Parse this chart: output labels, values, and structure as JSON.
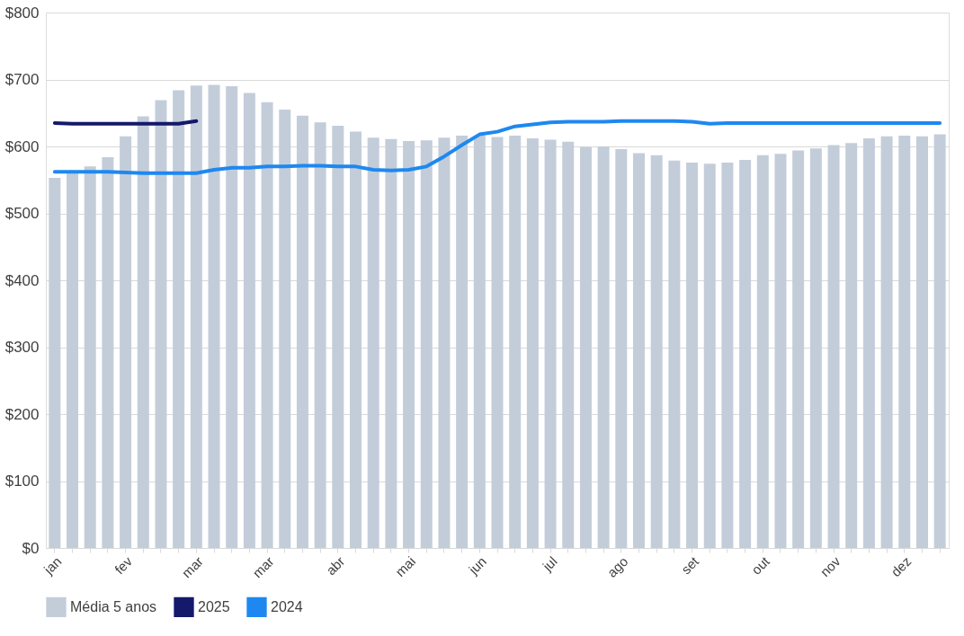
{
  "chart_data": {
    "type": "bar",
    "categories": [
      "jan",
      null,
      null,
      null,
      "fev",
      null,
      null,
      null,
      "mar",
      null,
      null,
      null,
      "mar",
      null,
      null,
      null,
      "abr",
      null,
      null,
      null,
      "mai",
      null,
      null,
      null,
      "jun",
      null,
      null,
      null,
      "jul",
      null,
      null,
      null,
      "ago",
      null,
      null,
      null,
      "set",
      null,
      null,
      null,
      "out",
      null,
      null,
      null,
      "nov",
      null,
      null,
      null,
      "dez",
      null,
      null
    ],
    "series": [
      {
        "name": "Média 5 anos",
        "color": "#c3cdda",
        "values": [
          553,
          560,
          570,
          584,
          615,
          645,
          669,
          684,
          691,
          692,
          690,
          680,
          666,
          655,
          646,
          636,
          631,
          622,
          613,
          611,
          608,
          609,
          613,
          616,
          616,
          614,
          616,
          612,
          610,
          607,
          599,
          600,
          596,
          590,
          587,
          579,
          576,
          574,
          576,
          580,
          587,
          589,
          594,
          597,
          602,
          605,
          612,
          615,
          616,
          615,
          618
        ]
      },
      {
        "name": "2025",
        "type": "line",
        "color": "#14196b",
        "values": [
          635,
          634,
          634,
          634,
          634,
          634,
          634,
          634,
          638,
          null,
          null,
          null,
          null,
          null,
          null,
          null,
          null,
          null,
          null,
          null,
          null,
          null,
          null,
          null,
          null,
          null,
          null,
          null,
          null,
          null,
          null,
          null,
          null,
          null,
          null,
          null,
          null,
          null,
          null,
          null,
          null,
          null,
          null,
          null,
          null,
          null,
          null,
          null,
          null,
          null,
          null
        ]
      },
      {
        "name": "2024",
        "type": "line",
        "color": "#1e88f0",
        "values": [
          562,
          562,
          562,
          562,
          561,
          560,
          560,
          560,
          560,
          565,
          568,
          568,
          570,
          570,
          571,
          571,
          570,
          570,
          565,
          564,
          565,
          570,
          585,
          602,
          618,
          622,
          630,
          633,
          636,
          637,
          637,
          637,
          638,
          638,
          638,
          638,
          637,
          634,
          635,
          635,
          635,
          635,
          635,
          635,
          635,
          635,
          635,
          635,
          635,
          635,
          635
        ]
      }
    ],
    "ylim": [
      0,
      800
    ],
    "yticks": [
      {
        "value": 0,
        "label": "$0"
      },
      {
        "value": 100,
        "label": "$100"
      },
      {
        "value": 200,
        "label": "$200"
      },
      {
        "value": 300,
        "label": "$300"
      },
      {
        "value": 400,
        "label": "$400"
      },
      {
        "value": 500,
        "label": "$500"
      },
      {
        "value": 600,
        "label": "$600"
      },
      {
        "value": 700,
        "label": "$700"
      },
      {
        "value": 800,
        "label": "$800"
      }
    ],
    "grid": "y",
    "legend": "bottom"
  }
}
